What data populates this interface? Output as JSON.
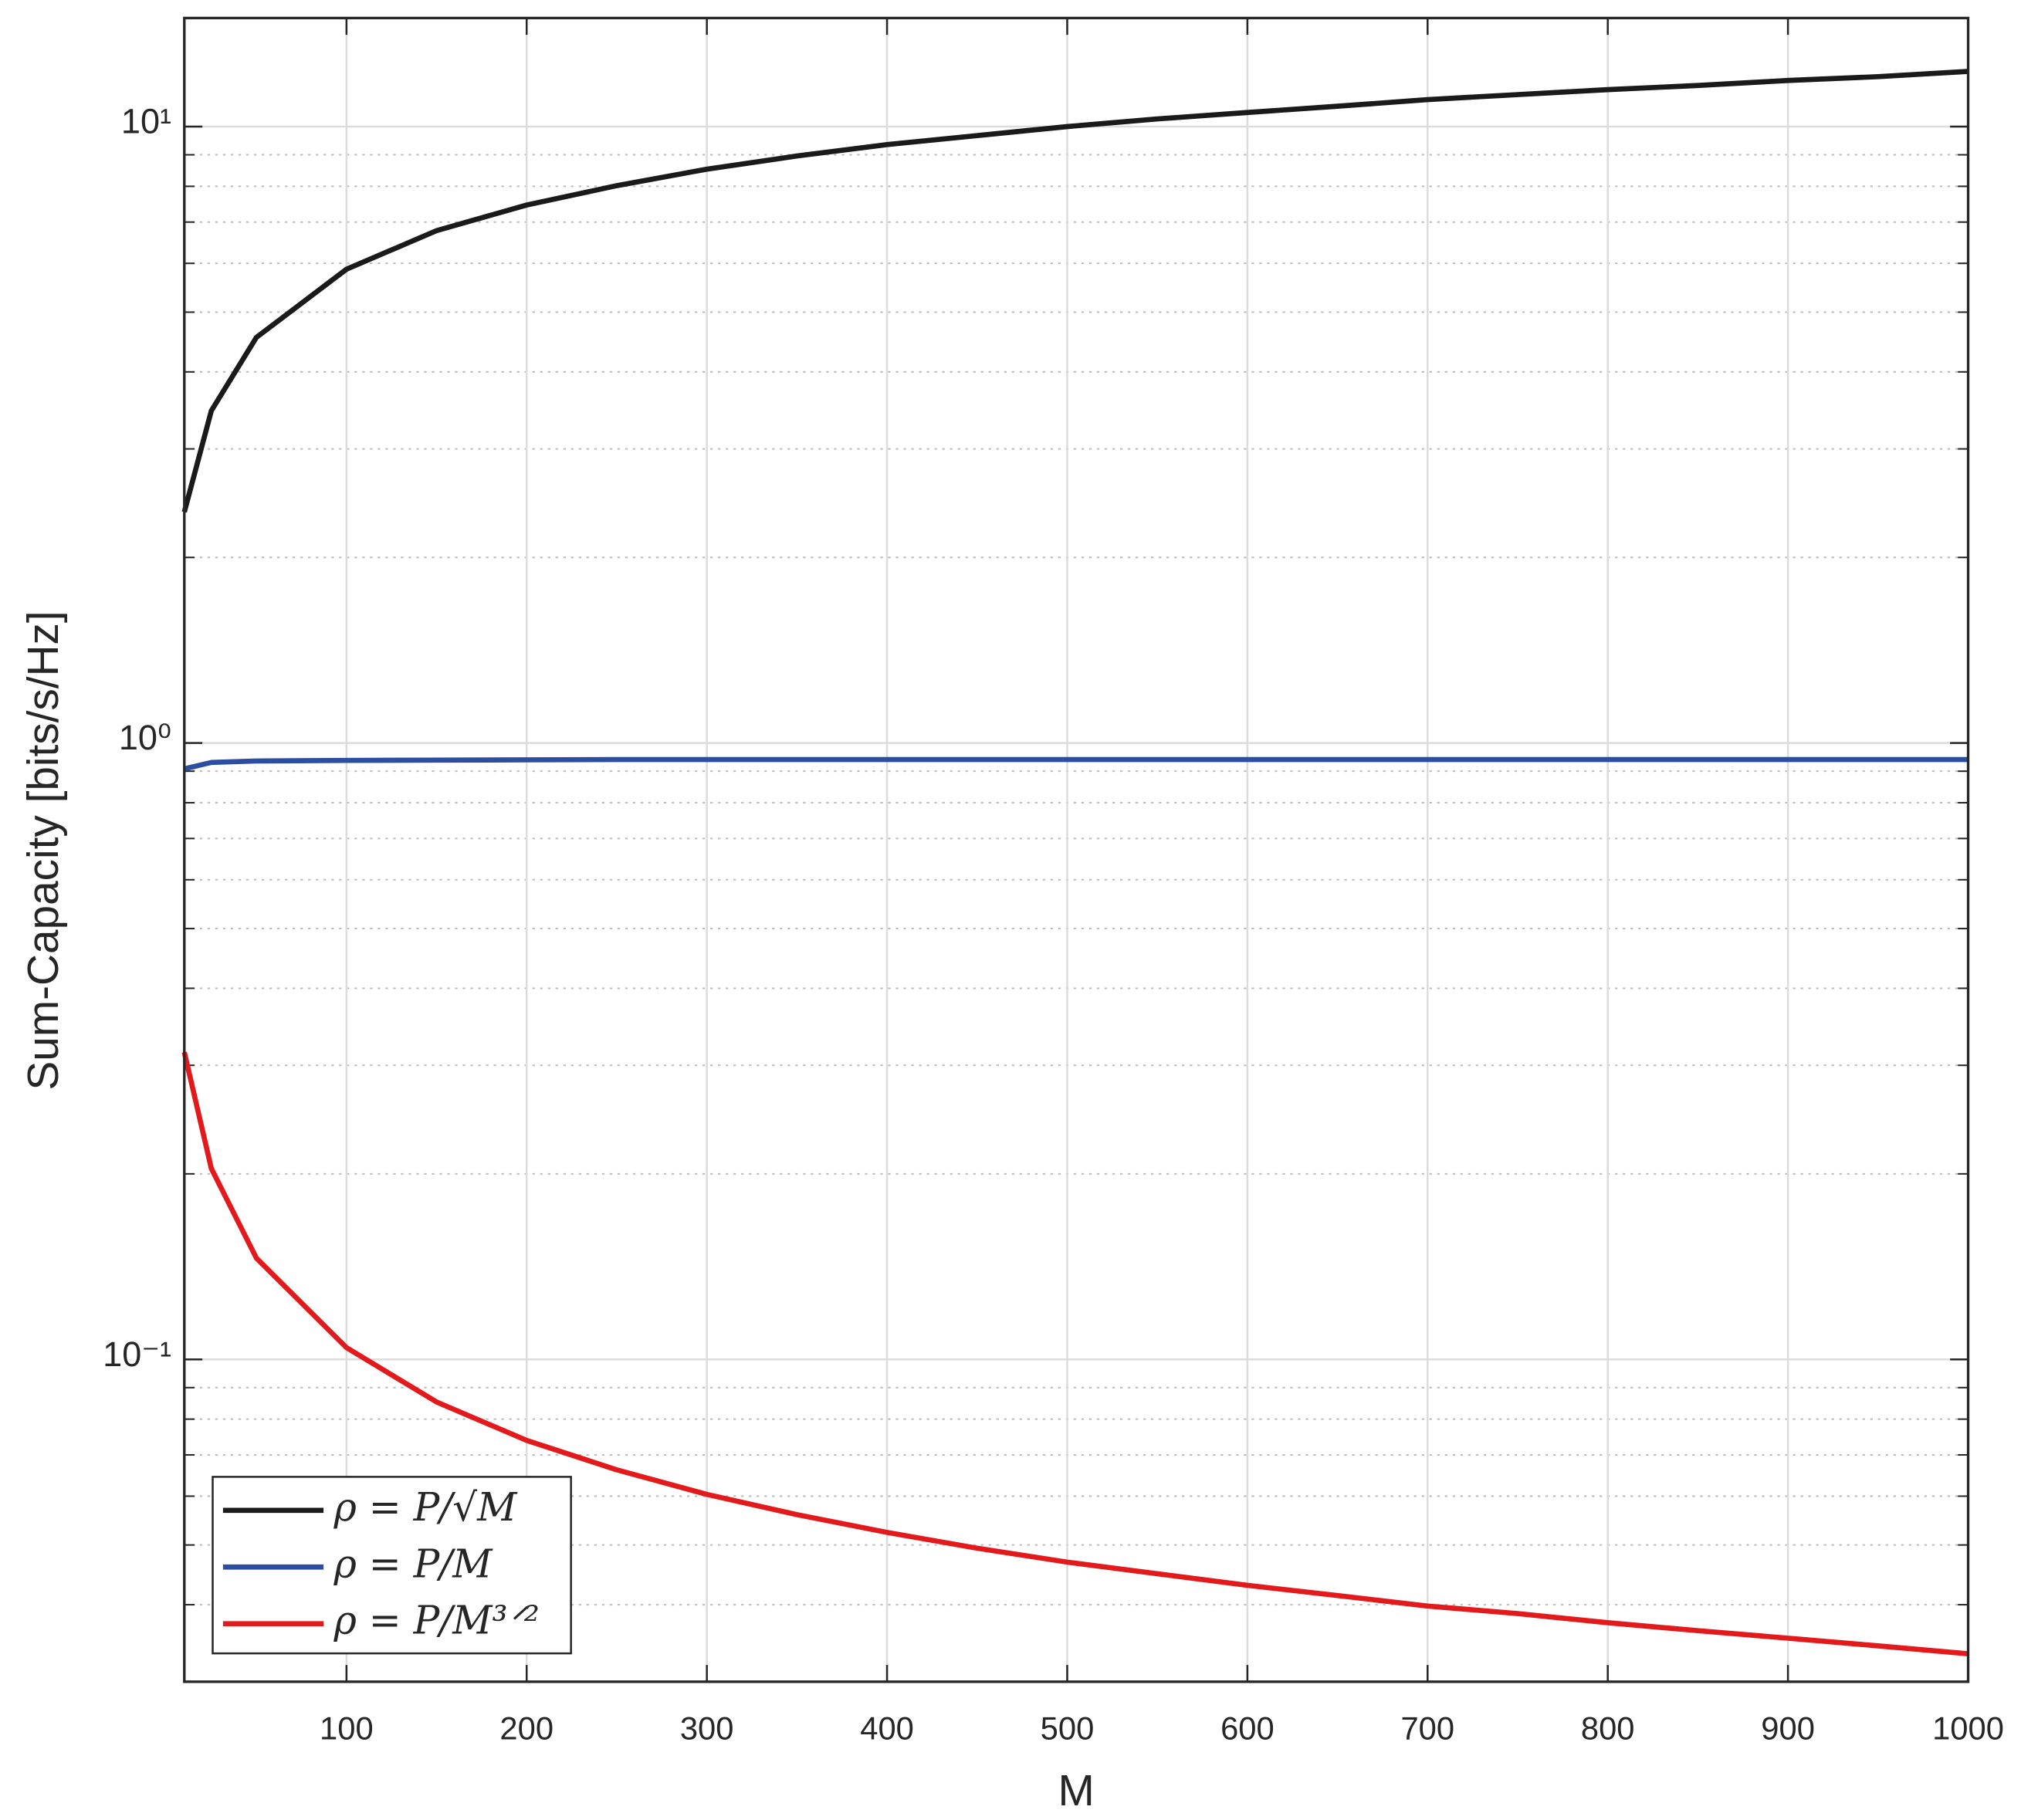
{
  "chart_data": {
    "type": "line",
    "x_label": "M",
    "y_label": "Sum-Capacity [bits/s/Hz]",
    "x": [
      10,
      25,
      50,
      100,
      150,
      200,
      250,
      300,
      350,
      400,
      450,
      500,
      550,
      600,
      650,
      700,
      750,
      800,
      850,
      900,
      950,
      1000
    ],
    "series": [
      {
        "name": "ρ = P/√M",
        "color": "#1a1a1a",
        "values": [
          2.37,
          3.46,
          4.55,
          5.87,
          6.78,
          7.46,
          8.02,
          8.53,
          8.96,
          9.35,
          9.67,
          10.0,
          10.29,
          10.54,
          10.79,
          11.06,
          11.27,
          11.48,
          11.66,
          11.88,
          12.05,
          12.29
        ]
      },
      {
        "name": "ρ = P/M",
        "color": "#2c4ea0",
        "values": [
          0.908,
          0.93,
          0.935,
          0.937,
          0.938,
          0.939,
          0.94,
          0.94,
          0.94,
          0.94,
          0.94,
          0.94,
          0.94,
          0.94,
          0.94,
          0.94,
          0.94,
          0.94,
          0.94,
          0.94,
          0.94,
          0.94
        ]
      },
      {
        "name": "ρ = P/M³ᐟ²",
        "color": "#e31a1c",
        "values": [
          0.315,
          0.204,
          0.146,
          0.1045,
          0.0853,
          0.0739,
          0.0662,
          0.0604,
          0.056,
          0.0524,
          0.0494,
          0.0469,
          0.0449,
          0.043,
          0.0414,
          0.0398,
          0.0387,
          0.0374,
          0.0363,
          0.0353,
          0.0343,
          0.0333
        ]
      }
    ],
    "xlim": [
      10,
      1000
    ],
    "xticks": [
      100,
      200,
      300,
      400,
      500,
      600,
      700,
      800,
      900,
      1000
    ],
    "ylim": [
      0.03,
      15
    ],
    "yticks": [
      {
        "value": 0.1,
        "label": "10⁻¹"
      },
      {
        "value": 1,
        "label": "10⁰"
      },
      {
        "value": 10,
        "label": "10¹"
      }
    ],
    "y_log": true,
    "grid": true,
    "minor_grid": true,
    "legend": "lower left"
  }
}
